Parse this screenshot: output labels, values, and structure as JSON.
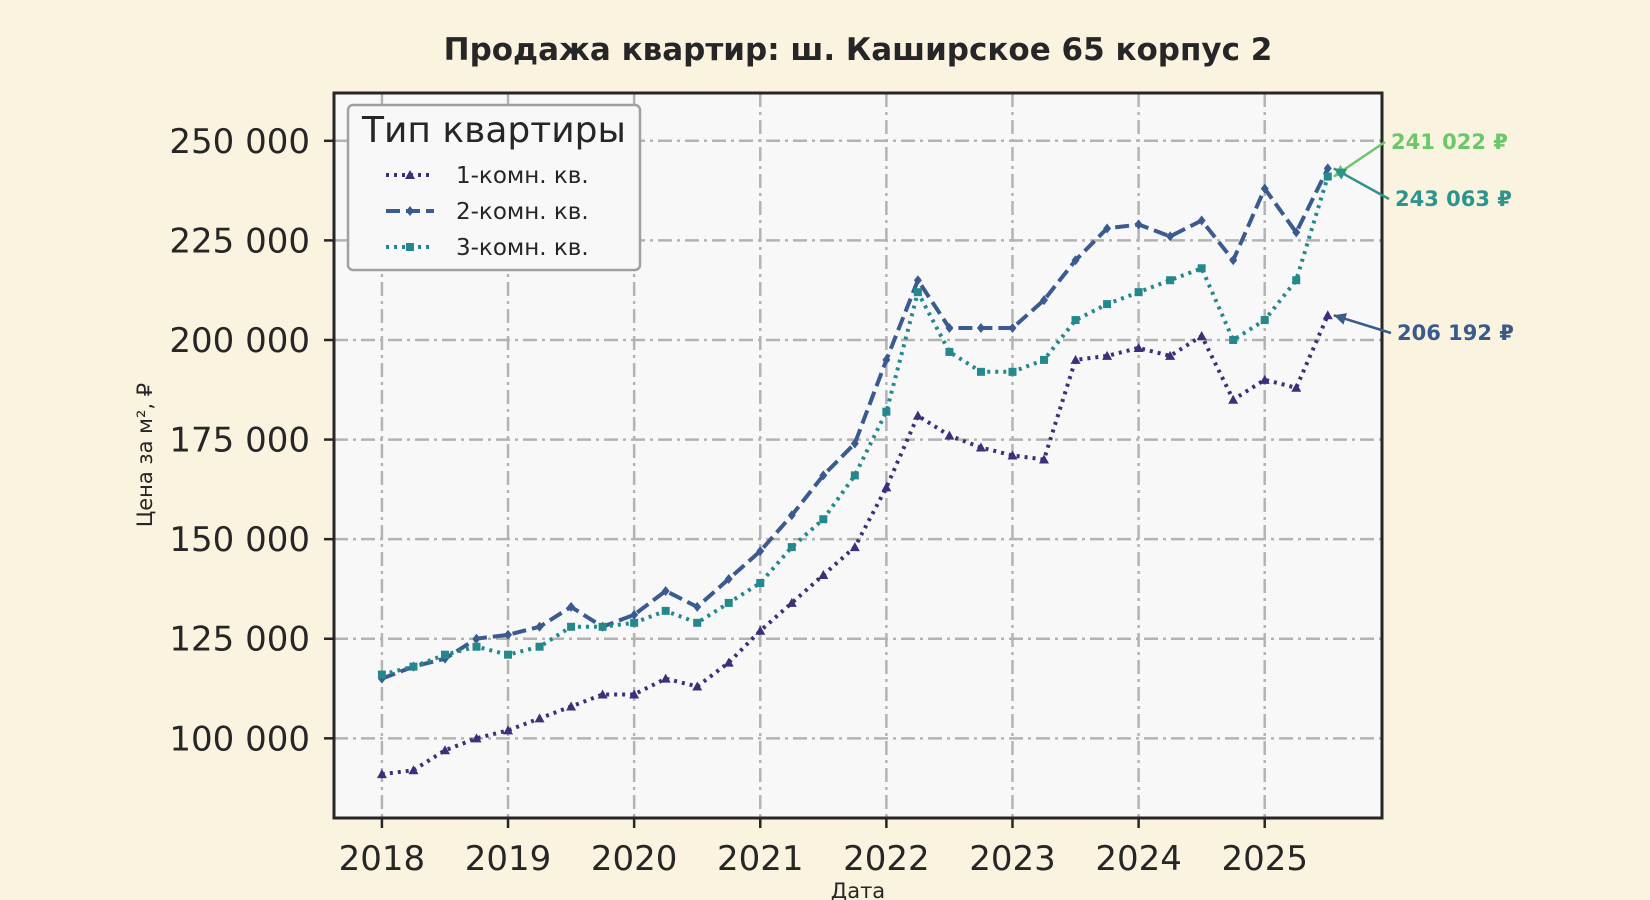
{
  "chart_data": {
    "type": "line",
    "title": "Продажа квартир: ш. Каширское 65 корпус 2",
    "xlabel": "Дата",
    "ylabel": "Цена за м², ₽",
    "xlim": [
      2017.62,
      2025.93
    ],
    "ylim": [
      80000,
      262000
    ],
    "x_ticks": [
      "2018",
      "2019",
      "2020",
      "2021",
      "2022",
      "2023",
      "2024",
      "2025"
    ],
    "y_ticks": [
      "100 000",
      "125 000",
      "150 000",
      "175 000",
      "200 000",
      "225 000",
      "250 000"
    ],
    "y_tick_values": [
      100000,
      125000,
      150000,
      175000,
      200000,
      225000,
      250000
    ],
    "grid": true,
    "legend": {
      "title": "Тип квартиры",
      "position": "top-left"
    },
    "x": [
      2018.0,
      2018.25,
      2018.5,
      2018.75,
      2019.0,
      2019.25,
      2019.5,
      2019.75,
      2020.0,
      2020.25,
      2020.5,
      2020.75,
      2021.0,
      2021.25,
      2021.5,
      2021.75,
      2022.0,
      2022.25,
      2022.5,
      2022.75,
      2023.0,
      2023.25,
      2023.5,
      2023.75,
      2024.0,
      2024.25,
      2024.5,
      2024.75,
      2025.0,
      2025.25,
      2025.5
    ],
    "series": [
      {
        "name": "1-комн. кв.",
        "color": "#3f2e7a",
        "dash": "dotted",
        "marker": "triangle",
        "values": [
          91000,
          92000,
          97000,
          100000,
          102000,
          105000,
          108000,
          111000,
          111000,
          115000,
          113000,
          119000,
          127000,
          134000,
          141000,
          148000,
          163000,
          181000,
          176000,
          173000,
          171000,
          170000,
          195000,
          196000,
          198000,
          196000,
          201000,
          185000,
          190000,
          188000,
          206192
        ]
      },
      {
        "name": "2-комн. кв.",
        "color": "#3b5b8f",
        "dash": "dashed",
        "marker": "diamond",
        "values": [
          115000,
          118000,
          120000,
          125000,
          126000,
          128000,
          133000,
          128000,
          131000,
          137000,
          133000,
          140000,
          147000,
          156000,
          166000,
          174000,
          195000,
          215000,
          203000,
          203000,
          203000,
          210000,
          220000,
          228000,
          229000,
          226000,
          230000,
          220000,
          238000,
          227000,
          243063
        ]
      },
      {
        "name": "3-комн. кв.",
        "color": "#24888c",
        "dash": "dotted",
        "marker": "square",
        "values": [
          116000,
          118000,
          121000,
          123000,
          121000,
          123000,
          128000,
          128000,
          129000,
          132000,
          129000,
          134000,
          139000,
          148000,
          155000,
          166000,
          182000,
          212000,
          197000,
          192000,
          192000,
          195000,
          205000,
          209000,
          212000,
          215000,
          218000,
          200000,
          205000,
          215000,
          241022
        ]
      }
    ],
    "annotations": [
      {
        "text": "241 022 ₽",
        "value": 241022,
        "color": "#6cc76a"
      },
      {
        "text": "243 063 ₽",
        "value": 243063,
        "color": "#2c948c"
      },
      {
        "text": "206 192 ₽",
        "value": 206192,
        "color": "#3a5a8c"
      }
    ]
  }
}
